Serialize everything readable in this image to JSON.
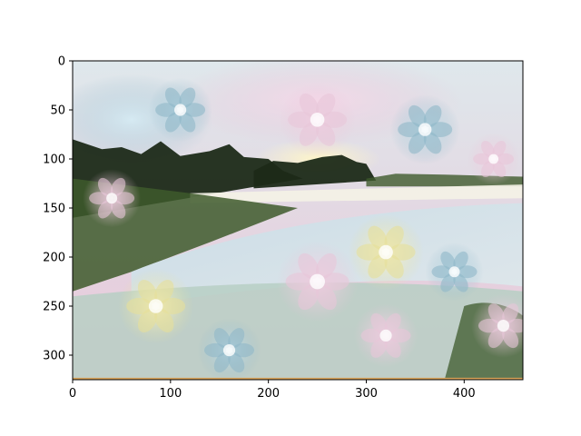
{
  "chart_data": {
    "type": "heatmap",
    "title": "",
    "xlabel": "",
    "ylabel": "",
    "image_width": 460,
    "image_height": 325,
    "xlim": [
      0,
      460
    ],
    "ylim": [
      325,
      0
    ],
    "y_inverted": true,
    "grid": false,
    "legend": "none",
    "x_ticks": [
      0,
      100,
      200,
      300,
      400
    ],
    "x_tick_labels": [
      "0",
      "100",
      "200",
      "300",
      "400"
    ],
    "y_ticks": [
      0,
      50,
      100,
      150,
      200,
      250,
      300
    ],
    "y_tick_labels": [
      "0",
      "50",
      "100",
      "150",
      "200",
      "250",
      "300"
    ],
    "image_content": "psychedelic dream-style landscape: tree line on a lake shore at sunset, water reflection, with pastel flower-like patterns overlaid",
    "colors": {
      "sky_light": "#dfe8ec",
      "sky_pink": "#e8c6d8",
      "tree_dark": "#1c2a18",
      "water": "#c9dde6",
      "flower_yellow": "#e6e09a",
      "flower_blue": "#8fb7c8",
      "vegetation_green": "#3e5a2c",
      "bottom_edge_orange": "#d9a35a"
    }
  }
}
